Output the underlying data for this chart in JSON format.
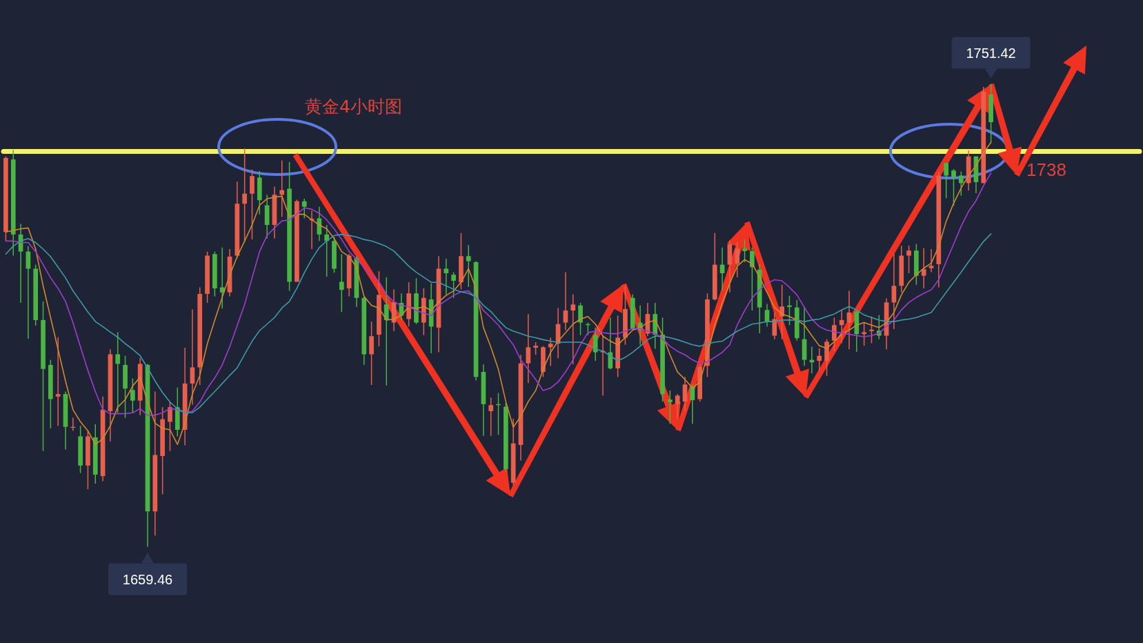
{
  "chart_data": {
    "type": "candlestick",
    "title": "黄金4小时图",
    "categories": [
      null,
      null,
      null,
      null,
      null,
      null,
      null,
      null,
      null,
      null,
      null,
      null,
      null,
      null,
      null,
      null,
      null,
      null,
      null,
      null,
      null,
      null,
      null,
      null,
      null,
      null,
      null,
      null,
      null,
      null,
      null,
      null,
      null,
      null,
      null,
      null,
      null,
      null,
      null,
      null,
      null,
      null,
      null,
      null,
      null,
      null,
      null,
      null,
      null,
      null,
      null,
      null,
      null,
      null,
      null,
      null,
      null,
      null,
      null,
      null,
      null,
      null,
      null,
      null,
      null,
      null,
      null,
      null,
      null,
      null,
      null,
      null,
      null,
      null,
      null,
      null,
      null,
      null,
      null,
      null,
      null,
      null,
      null,
      null,
      null,
      null,
      null,
      null,
      null,
      null,
      null,
      null,
      null,
      null,
      null,
      null,
      null,
      null,
      null,
      null,
      null,
      null,
      null,
      null,
      null,
      null,
      null,
      null,
      null,
      null,
      null,
      null,
      null,
      null,
      null,
      null,
      null,
      null,
      null,
      null,
      null,
      null,
      null,
      null,
      null,
      null,
      null,
      null,
      null,
      null,
      null,
      null,
      null
    ],
    "ohlc": [
      [
        1722.0,
        1737.0,
        1720.2,
        1736.7
      ],
      [
        1736.4,
        1738.3,
        1717.3,
        1721.5
      ],
      [
        1721.5,
        1723.6,
        1707.9,
        1718.1
      ],
      [
        1718.1,
        1719.2,
        1700.8,
        1714.7
      ],
      [
        1714.7,
        1715.5,
        1703.4,
        1704.5
      ],
      [
        1704.5,
        1708.2,
        1678.5,
        1694.8
      ],
      [
        1695.6,
        1696.6,
        1683.0,
        1688.8
      ],
      [
        1689.3,
        1701.1,
        1683.5,
        1689.8
      ],
      [
        1689.8,
        1690.3,
        1678.8,
        1683.3
      ],
      [
        1683.1,
        1685.1,
        1682.5,
        1683.3
      ],
      [
        1681.4,
        1683.5,
        1674.1,
        1675.6
      ],
      [
        1675.6,
        1682.5,
        1670.9,
        1681.4
      ],
      [
        1681.2,
        1683.8,
        1672.0,
        1673.8
      ],
      [
        1673.5,
        1689.3,
        1672.5,
        1686.7
      ],
      [
        1686.4,
        1698.7,
        1680.4,
        1697.7
      ],
      [
        1697.7,
        1702.1,
        1686.1,
        1695.8
      ],
      [
        1695.6,
        1697.4,
        1685.1,
        1690.9
      ],
      [
        1690.6,
        1692.9,
        1686.1,
        1688.5
      ],
      [
        1688.5,
        1696.9,
        1685.6,
        1695.8
      ],
      [
        1695.6,
        1695.8,
        1659.46,
        1666.5
      ],
      [
        1666.5,
        1690.3,
        1661.7,
        1677.7
      ],
      [
        1677.5,
        1687.2,
        1669.9,
        1684.8
      ],
      [
        1684.3,
        1688.2,
        1678.5,
        1687.2
      ],
      [
        1687.2,
        1691.1,
        1681.4,
        1682.7
      ],
      [
        1682.7,
        1699.0,
        1679.6,
        1691.9
      ],
      [
        1691.9,
        1706.6,
        1687.7,
        1695.1
      ],
      [
        1695.1,
        1711.0,
        1691.6,
        1709.7
      ],
      [
        1709.7,
        1718.1,
        1707.9,
        1717.3
      ],
      [
        1717.6,
        1718.1,
        1709.2,
        1710.8
      ],
      [
        1711.0,
        1718.9,
        1706.8,
        1710.0
      ],
      [
        1710.0,
        1718.6,
        1709.2,
        1717.1
      ],
      [
        1717.3,
        1732.0,
        1716.8,
        1727.6
      ],
      [
        1727.6,
        1738.6,
        1720.0,
        1729.6
      ],
      [
        1729.6,
        1734.4,
        1720.5,
        1733.1
      ],
      [
        1732.8,
        1734.1,
        1725.5,
        1728.3
      ],
      [
        1727.3,
        1729.4,
        1720.7,
        1723.4
      ],
      [
        1723.4,
        1731.0,
        1720.7,
        1729.4
      ],
      [
        1729.4,
        1736.2,
        1725.0,
        1730.3
      ],
      [
        1730.6,
        1735.9,
        1710.3,
        1712.1
      ],
      [
        1712.1,
        1728.4,
        1712.1,
        1728.1
      ],
      [
        1728.1,
        1728.6,
        1724.7,
        1727.0
      ],
      [
        1724.3,
        1726.2,
        1718.6,
        1724.6
      ],
      [
        1724.7,
        1727.0,
        1720.2,
        1721.5
      ],
      [
        1721.5,
        1723.4,
        1713.1,
        1720.2
      ],
      [
        1720.2,
        1721.0,
        1713.9,
        1714.7
      ],
      [
        1712.1,
        1717.6,
        1706.1,
        1710.5
      ],
      [
        1710.8,
        1717.6,
        1709.2,
        1717.3
      ],
      [
        1716.8,
        1717.1,
        1707.1,
        1708.9
      ],
      [
        1708.9,
        1709.2,
        1695.6,
        1697.7
      ],
      [
        1697.7,
        1704.2,
        1691.6,
        1701.3
      ],
      [
        1701.6,
        1714.2,
        1699.3,
        1709.5
      ],
      [
        1707.6,
        1713.0,
        1691.5,
        1704.5
      ],
      [
        1704.0,
        1710.6,
        1702.3,
        1708.1
      ],
      [
        1707.9,
        1709.8,
        1704.5,
        1705.4
      ],
      [
        1704.7,
        1712.0,
        1703.2,
        1709.8
      ],
      [
        1709.8,
        1712.8,
        1703.7,
        1704.0
      ],
      [
        1704.0,
        1710.8,
        1701.5,
        1708.9
      ],
      [
        1708.6,
        1711.8,
        1697.9,
        1703.2
      ],
      [
        1703.0,
        1717.2,
        1698.1,
        1714.7
      ],
      [
        1714.7,
        1716.7,
        1709.6,
        1713.8
      ],
      [
        1713.5,
        1714.0,
        1708.9,
        1712.3
      ],
      [
        1712.0,
        1721.8,
        1710.6,
        1717.2
      ],
      [
        1717.2,
        1719.4,
        1711.1,
        1716.2
      ],
      [
        1716.0,
        1716.2,
        1692.5,
        1693.2
      ],
      [
        1694.2,
        1695.7,
        1681.5,
        1687.8
      ],
      [
        1686.4,
        1689.1,
        1681.5,
        1687.6
      ],
      [
        1687.8,
        1690.0,
        1681.7,
        1687.6
      ],
      [
        1687.3,
        1688.1,
        1674.4,
        1674.9
      ],
      [
        1672.2,
        1684.9,
        1671.7,
        1680.0
      ],
      [
        1679.7,
        1697.6,
        1676.6,
        1695.9
      ],
      [
        1695.9,
        1705.7,
        1692.0,
        1699.1
      ],
      [
        1699.0,
        1700.1,
        1697.6,
        1699.4
      ],
      [
        1694.2,
        1699.3,
        1693.2,
        1699.1
      ],
      [
        1699.1,
        1701.0,
        1695.4,
        1699.8
      ],
      [
        1699.8,
        1706.9,
        1696.9,
        1703.7
      ],
      [
        1704.0,
        1714.0,
        1702.5,
        1706.4
      ],
      [
        1706.4,
        1709.6,
        1695.7,
        1707.6
      ],
      [
        1707.4,
        1707.9,
        1701.5,
        1704.0
      ],
      [
        1703.7,
        1704.0,
        1701.5,
        1703.5
      ],
      [
        1701.5,
        1703.0,
        1696.4,
        1698.1
      ],
      [
        1698.1,
        1701.5,
        1689.5,
        1698.4
      ],
      [
        1698.1,
        1705.0,
        1694.7,
        1694.9
      ],
      [
        1694.9,
        1705.4,
        1693.2,
        1701.0
      ],
      [
        1701.0,
        1711.3,
        1699.6,
        1706.7
      ],
      [
        1708.9,
        1709.6,
        1702.5,
        1702.8
      ],
      [
        1704.0,
        1707.4,
        1699.6,
        1702.5
      ],
      [
        1701.8,
        1707.9,
        1701.3,
        1705.7
      ],
      [
        1705.7,
        1707.9,
        1698.8,
        1701.6
      ],
      [
        1701.6,
        1705.0,
        1688.3,
        1689.8
      ],
      [
        1688.7,
        1690.5,
        1683.9,
        1688.2
      ],
      [
        1687.8,
        1689.8,
        1684.9,
        1689.5
      ],
      [
        1688.3,
        1693.2,
        1686.4,
        1691.7
      ],
      [
        1691.2,
        1691.7,
        1683.9,
        1688.6
      ],
      [
        1688.8,
        1695.7,
        1688.3,
        1695.2
      ],
      [
        1695.4,
        1709.8,
        1693.2,
        1708.6
      ],
      [
        1708.6,
        1721.8,
        1708.4,
        1715.5
      ],
      [
        1715.5,
        1718.9,
        1710.4,
        1713.8
      ],
      [
        1715.5,
        1720.3,
        1710.0,
        1719.6
      ],
      [
        1715.7,
        1720.0,
        1713.0,
        1718.7
      ],
      [
        1718.7,
        1720.5,
        1716.0,
        1718.2
      ],
      [
        1718.2,
        1718.9,
        1706.4,
        1715.0
      ],
      [
        1714.5,
        1715.6,
        1701.9,
        1707.0
      ],
      [
        1706.5,
        1707.7,
        1703.2,
        1704.2
      ],
      [
        1701.4,
        1706.0,
        1700.7,
        1704.7
      ],
      [
        1705.2,
        1711.5,
        1700.7,
        1707.2
      ],
      [
        1707.4,
        1709.3,
        1703.5,
        1707.1
      ],
      [
        1707.0,
        1708.5,
        1700.4,
        1700.9
      ],
      [
        1700.7,
        1707.2,
        1695.4,
        1696.6
      ],
      [
        1696.6,
        1699.2,
        1693.9,
        1696.1
      ],
      [
        1696.4,
        1698.9,
        1694.4,
        1697.4
      ],
      [
        1696.4,
        1700.7,
        1693.4,
        1700.2
      ],
      [
        1700.4,
        1705.0,
        1698.4,
        1703.5
      ],
      [
        1703.5,
        1706.5,
        1699.9,
        1704.5
      ],
      [
        1704.0,
        1710.3,
        1698.7,
        1706.0
      ],
      [
        1706.2,
        1706.2,
        1698.2,
        1701.7
      ],
      [
        1701.7,
        1704.0,
        1699.4,
        1702.1
      ],
      [
        1702.3,
        1705.2,
        1699.9,
        1702.6
      ],
      [
        1702.4,
        1705.5,
        1700.7,
        1701.4
      ],
      [
        1701.4,
        1708.8,
        1698.7,
        1708.0
      ],
      [
        1708.0,
        1717.6,
        1702.7,
        1711.3
      ],
      [
        1711.3,
        1719.3,
        1710.0,
        1717.3
      ],
      [
        1717.3,
        1719.3,
        1713.8,
        1718.3
      ],
      [
        1718.3,
        1719.6,
        1711.5,
        1713.3
      ],
      [
        1713.3,
        1718.8,
        1710.8,
        1714.6
      ],
      [
        1714.8,
        1718.6,
        1714.0,
        1715.3
      ],
      [
        1715.6,
        1733.9,
        1711.0,
        1733.2
      ],
      [
        1735.7,
        1735.7,
        1728.7,
        1733.2
      ],
      [
        1734.2,
        1734.5,
        1727.2,
        1732.7
      ],
      [
        1733.2,
        1734.0,
        1729.2,
        1731.7
      ],
      [
        1731.7,
        1738.2,
        1730.2,
        1737.0
      ],
      [
        1737.0,
        1737.0,
        1729.7,
        1731.9
      ],
      [
        1731.7,
        1750.8,
        1731.7,
        1749.8
      ],
      [
        1749.3,
        1751.42,
        1739.8,
        1743.8
      ]
    ],
    "colors": [
      "#e8604c",
      "#4bb543",
      "#4bb543",
      "#4bb543",
      "#4bb543",
      "#4bb543",
      "#4bb543",
      "#e8604c",
      "#4bb543",
      "#e8604c",
      "#4bb543",
      "#e8604c",
      "#4bb543",
      "#e8604c",
      "#e8604c",
      "#4bb543",
      "#4bb543",
      "#4bb543",
      "#e8604c",
      "#4bb543",
      "#e8604c",
      "#e8604c",
      "#e8604c",
      "#4bb543",
      "#e8604c",
      "#e8604c",
      "#e8604c",
      "#e8604c",
      "#4bb543",
      "#4bb543",
      "#e8604c",
      "#e8604c",
      "#e8604c",
      "#e8604c",
      "#4bb543",
      "#4bb543",
      "#e8604c",
      "#e8604c",
      "#4bb543",
      "#e8604c",
      "#4bb543",
      "#e8604c",
      "#4bb543",
      "#4bb543",
      "#4bb543",
      "#4bb543",
      "#e8604c",
      "#4bb543",
      "#4bb543",
      "#e8604c",
      "#e8604c",
      "#4bb543",
      "#e8604c",
      "#4bb543",
      "#e8604c",
      "#4bb543",
      "#e8604c",
      "#4bb543",
      "#e8604c",
      "#4bb543",
      "#4bb543",
      "#e8604c",
      "#4bb543",
      "#4bb543",
      "#4bb543",
      "#e8604c",
      "#4bb543",
      "#4bb543",
      "#e8604c",
      "#e8604c",
      "#e8604c",
      "#e8604c",
      "#e8604c",
      "#e8604c",
      "#e8604c",
      "#e8604c",
      "#e8604c",
      "#4bb543",
      "#4bb543",
      "#4bb543",
      "#e8604c",
      "#4bb543",
      "#e8604c",
      "#e8604c",
      "#4bb543",
      "#4bb543",
      "#e8604c",
      "#4bb543",
      "#4bb543",
      "#4bb543",
      "#e8604c",
      "#e8604c",
      "#4bb543",
      "#e8604c",
      "#e8604c",
      "#e8604c",
      "#4bb543",
      "#e8604c",
      "#e8604c",
      "#4bb543",
      "#4bb543",
      "#4bb543",
      "#4bb543",
      "#e8604c",
      "#e8604c",
      "#4bb543",
      "#4bb543",
      "#4bb543",
      "#4bb543",
      "#e8604c",
      "#e8604c",
      "#e8604c",
      "#e8604c",
      "#e8604c",
      "#4bb543",
      "#e8604c",
      "#e8604c",
      "#4bb543",
      "#e8604c",
      "#e8604c",
      "#e8604c",
      "#e8604c",
      "#4bb543",
      "#e8604c",
      "#e8604c",
      "#e8604c",
      "#4bb543",
      "#4bb543",
      "#4bb543",
      "#e8604c",
      "#4bb543",
      "#e8604c",
      "#4bb543"
    ],
    "series": [
      {
        "type": "line",
        "color": "#d08a2c",
        "values": [
          1722.0,
          1722.3,
          1722.6,
          1722.8,
          1718.6,
          1711.3,
          1705.0,
          1698.7,
          1692.4,
          1686.7,
          1684.3,
          1682.5,
          1679.8,
          1680.9,
          1683.5,
          1687.2,
          1688.7,
          1691.4,
          1693.2,
          1688.2,
          1684.0,
          1683.0,
          1682.7,
          1679.8,
          1684.0,
          1689.8,
          1693.5,
          1699.8,
          1704.5,
          1709.0,
          1713.4,
          1717.1,
          1720.2,
          1723.4,
          1727.3,
          1728.6,
          1728.9,
          1729.1,
          1725.0,
          1725.5,
          1725.5,
          1724.4,
          1723.4,
          1722.6,
          1720.7,
          1718.1,
          1717.1,
          1715.0,
          1709.2,
          1707.4,
          1706.9,
          1704.5,
          1704.7,
          1705.4,
          1707.2,
          1706.7,
          1707.2,
          1706.4,
          1708.1,
          1709.4,
          1710.3,
          1712.0,
          1714.7,
          1710.8,
          1703.0,
          1699.1,
          1694.7,
          1688.3,
          1683.2,
          1685.4,
          1688.3,
          1690.5,
          1694.7,
          1698.1,
          1700.3,
          1702.0,
          1703.7,
          1704.7,
          1705.2,
          1703.7,
          1701.3,
          1700.3,
          1699.6,
          1701.0,
          1702.5,
          1703.0,
          1704.0,
          1704.5,
          1701.5,
          1697.6,
          1694.2,
          1692.7,
          1691.0,
          1692.2,
          1697.6,
          1703.5,
          1707.9,
          1711.8,
          1715.2,
          1716.5,
          1715.7,
          1713.0,
          1710.0,
          1707.0,
          1705.7,
          1705.2,
          1704.5,
          1703.5,
          1701.4,
          1699.4,
          1698.9,
          1700.2,
          1701.7,
          1702.5,
          1703.5,
          1704.0,
          1703.5,
          1703.0,
          1704.0,
          1706.0,
          1709.5,
          1712.0,
          1713.5,
          1714.8,
          1715.8,
          1719.1,
          1724.1,
          1727.7,
          1730.7,
          1733.2,
          1735.2,
          1737.7,
          1739.8
        ]
      },
      {
        "type": "line",
        "color": "#a23ccc",
        "values": [
          1720.2,
          1720.2,
          1719.9,
          1719.9,
          1718.1,
          1715.5,
          1712.9,
          1710.8,
          1708.2,
          1704.0,
          1699.2,
          1694.5,
          1690.3,
          1686.7,
          1685.9,
          1685.9,
          1685.9,
          1686.1,
          1686.9,
          1685.6,
          1685.6,
          1686.1,
          1686.9,
          1686.7,
          1686.1,
          1686.4,
          1688.2,
          1690.9,
          1693.0,
          1695.6,
          1699.2,
          1703.4,
          1707.6,
          1712.9,
          1718.1,
          1721.3,
          1722.8,
          1724.2,
          1724.4,
          1725.5,
          1726.8,
          1726.5,
          1725.7,
          1724.4,
          1722.6,
          1720.5,
          1718.1,
          1716.6,
          1715.0,
          1713.4,
          1712.1,
          1709.6,
          1708.1,
          1707.4,
          1707.2,
          1706.4,
          1705.9,
          1705.4,
          1707.4,
          1708.4,
          1709.4,
          1710.1,
          1710.3,
          1708.9,
          1706.4,
          1705.0,
          1703.5,
          1701.5,
          1699.6,
          1696.6,
          1694.7,
          1692.7,
          1690.5,
          1691.0,
          1692.2,
          1694.2,
          1696.6,
          1699.6,
          1702.0,
          1702.3,
          1702.0,
          1701.8,
          1701.8,
          1702.3,
          1702.8,
          1702.8,
          1702.3,
          1701.8,
          1700.8,
          1699.3,
          1698.3,
          1697.6,
          1696.6,
          1695.9,
          1696.2,
          1697.1,
          1698.1,
          1699.6,
          1703.5,
          1706.4,
          1708.9,
          1710.5,
          1711.8,
          1712.5,
          1712.3,
          1711.0,
          1709.5,
          1707.0,
          1704.7,
          1703.2,
          1702.5,
          1702.2,
          1701.9,
          1701.7,
          1701.4,
          1701.2,
          1701.4,
          1701.9,
          1703.2,
          1704.5,
          1706.5,
          1708.0,
          1709.0,
          1709.8,
          1710.5,
          1712.5,
          1716.1,
          1719.6,
          1723.1,
          1726.1,
          1728.2,
          1731.2,
          1733.7
        ]
      },
      {
        "type": "line",
        "color": "#3f9aa8",
        "values": [
          1717.6,
          1719.2,
          1720.2,
          1720.7,
          1719.9,
          1718.6,
          1717.1,
          1715.0,
          1712.9,
          1710.3,
          1708.2,
          1706.1,
          1704.2,
          1703.2,
          1702.1,
          1701.1,
          1699.8,
          1698.7,
          1697.4,
          1695.0,
          1692.4,
          1690.1,
          1688.2,
          1686.9,
          1686.1,
          1686.1,
          1687.2,
          1688.8,
          1690.3,
          1691.9,
          1693.5,
          1695.0,
          1697.7,
          1700.3,
          1702.4,
          1703.7,
          1705.0,
          1706.9,
          1708.2,
          1710.8,
          1713.9,
          1716.6,
          1718.9,
          1720.2,
          1721.3,
          1721.5,
          1721.3,
          1721.0,
          1720.5,
          1720.2,
          1719.7,
          1719.1,
          1718.2,
          1716.7,
          1715.2,
          1714.0,
          1713.0,
          1712.0,
          1712.0,
          1711.3,
          1710.6,
          1710.1,
          1709.8,
          1709.1,
          1707.4,
          1706.2,
          1704.5,
          1703.0,
          1702.3,
          1701.8,
          1701.3,
          1701.0,
          1700.6,
          1700.3,
          1700.1,
          1700.1,
          1700.1,
          1700.1,
          1699.6,
          1698.8,
          1698.3,
          1697.4,
          1696.4,
          1697.1,
          1698.1,
          1699.3,
          1700.6,
          1701.3,
          1701.3,
          1701.0,
          1700.6,
          1700.1,
          1699.6,
          1699.3,
          1699.8,
          1700.1,
          1700.3,
          1701.3,
          1702.3,
          1703.0,
          1703.7,
          1703.9,
          1704.2,
          1704.2,
          1704.5,
          1704.5,
          1704.5,
          1704.2,
          1704.5,
          1704.7,
          1705.2,
          1705.7,
          1706.5,
          1707.2,
          1706.5,
          1705.5,
          1705.0,
          1704.5,
          1704.2,
          1704.2,
          1704.5,
          1704.7,
          1705.0,
          1705.5,
          1706.0,
          1708.0,
          1710.0,
          1712.0,
          1714.0,
          1716.1,
          1718.1,
          1720.1,
          1721.6
        ]
      }
    ],
    "ref_lines": [
      {
        "axis": "y",
        "value": 1738,
        "label": "1738",
        "color": "#f3f06b"
      }
    ],
    "annotations": [
      {
        "text": "1751.42",
        "y": 1751.42
      },
      {
        "text": "1659.46",
        "y": 1659.46
      }
    ]
  }
}
